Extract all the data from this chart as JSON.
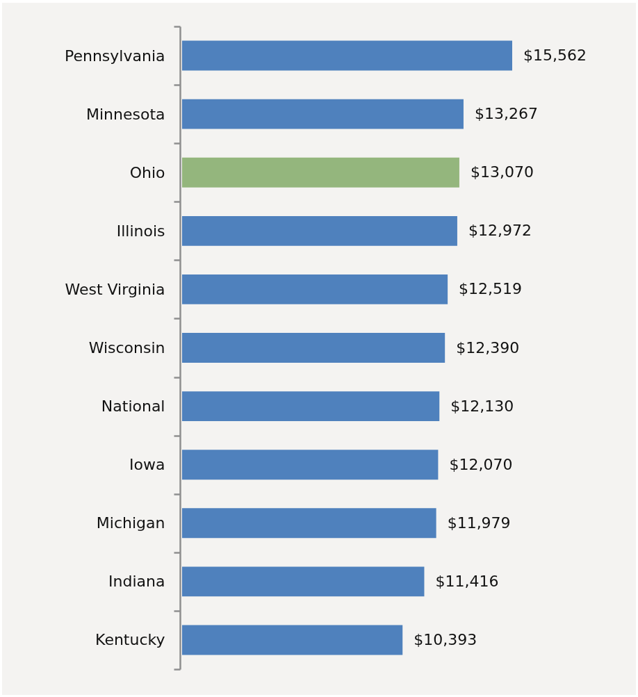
{
  "chart_data": {
    "type": "bar",
    "orientation": "horizontal",
    "categories": [
      "Pennsylvania",
      "Minnesota",
      "Ohio",
      "Illinois",
      "West Virginia",
      "Wisconsin",
      "National",
      "Iowa",
      "Michigan",
      "Indiana",
      "Kentucky"
    ],
    "values": [
      15562,
      13267,
      13070,
      12972,
      12519,
      12390,
      12130,
      12070,
      11979,
      11416,
      10393
    ],
    "value_labels": [
      "$15,562",
      "$13,267",
      "$13,070",
      "$12,972",
      "$12,519",
      "$12,390",
      "$12,130",
      "$12,070",
      "$11,979",
      "$11,416",
      "$10,393"
    ],
    "colors": [
      "#4f81bd",
      "#4f81bd",
      "#94b67d",
      "#4f81bd",
      "#4f81bd",
      "#4f81bd",
      "#4f81bd",
      "#4f81bd",
      "#4f81bd",
      "#4f81bd",
      "#4f81bd"
    ],
    "tick_labels": "y"
  }
}
